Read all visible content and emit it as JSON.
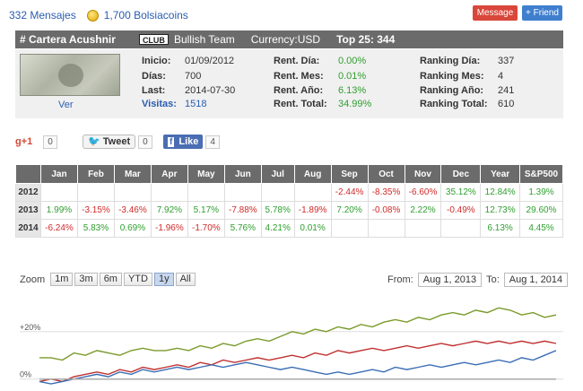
{
  "topbar": {
    "mensajes": "332 Mensajes",
    "bolsiacoins": "1,700 Bolsiacoins",
    "message_btn": "Message",
    "friend_btn": "+ Friend"
  },
  "header": {
    "title": "# Cartera Acushnir",
    "club": "CLUB",
    "team": "Bullish Team",
    "currency": "Currency:USD",
    "top25": "Top 25: 344"
  },
  "profile": {
    "ver": "Ver"
  },
  "info": {
    "col1": [
      {
        "label": "Inicio:",
        "value": "01/09/2012"
      },
      {
        "label": "Días:",
        "value": "700"
      },
      {
        "label": "Last:",
        "value": "2014-07-30"
      },
      {
        "label": "Visitas:",
        "value": "1518"
      }
    ],
    "col2": [
      {
        "label": "Rent. Día:",
        "value": "0.00%"
      },
      {
        "label": "Rent. Mes:",
        "value": "0.01%"
      },
      {
        "label": "Rent. Año:",
        "value": "6.13%"
      },
      {
        "label": "Rent. Total:",
        "value": "34.99%"
      }
    ],
    "col3": [
      {
        "label": "Ranking Día:",
        "value": "337"
      },
      {
        "label": "Ranking Mes:",
        "value": "4"
      },
      {
        "label": "Ranking Año:",
        "value": "241"
      },
      {
        "label": "Ranking Total:",
        "value": "610"
      }
    ]
  },
  "social": {
    "gplus": "g+1",
    "gplus_count": "0",
    "tweet": "Tweet",
    "tweet_count": "0",
    "like": "Like",
    "like_count": "4"
  },
  "table": {
    "headers": [
      "",
      "Jan",
      "Feb",
      "Mar",
      "Apr",
      "May",
      "Jun",
      "Jul",
      "Aug",
      "Sep",
      "Oct",
      "Nov",
      "Dec",
      "Year",
      "S&P500"
    ],
    "rows": [
      {
        "year": "2012",
        "cells": [
          "",
          "",
          "",
          "",
          "",
          "",
          "",
          "",
          "-2.44%",
          "-8.35%",
          "-6.60%",
          "35.12%",
          "12.84%",
          "1.39%"
        ]
      },
      {
        "year": "2013",
        "cells": [
          "1.99%",
          "-3.15%",
          "-3.46%",
          "7.92%",
          "5.17%",
          "-7.88%",
          "5.78%",
          "-1.89%",
          "7.20%",
          "-0.08%",
          "2.22%",
          "-0.49%",
          "12.73%",
          "29.60%"
        ]
      },
      {
        "year": "2014",
        "cells": [
          "-6.24%",
          "5.83%",
          "0.69%",
          "-1.96%",
          "-1.70%",
          "5.76%",
          "4.21%",
          "0.01%",
          "",
          "",
          "",
          "",
          "6.13%",
          "4.45%"
        ]
      }
    ]
  },
  "chart_controls": {
    "zoom_label": "Zoom",
    "zoom_buttons": [
      "1m",
      "3m",
      "6m",
      "YTD",
      "1y",
      "All"
    ],
    "active": "1y",
    "from_label": "From:",
    "from_value": "Aug 1, 2013",
    "to_label": "To:",
    "to_value": "Aug 1, 2014"
  },
  "chart_data": {
    "type": "line",
    "y_tick_labels": [
      "+20%",
      "0%"
    ],
    "ylim": [
      -2,
      32
    ],
    "series": [
      {
        "color": "#7a9a2a",
        "values": [
          9,
          9,
          8,
          11,
          10,
          12,
          11,
          10,
          12,
          13,
          12,
          12,
          13,
          12,
          14,
          13,
          15,
          14,
          16,
          17,
          16,
          18,
          20,
          19,
          21,
          20,
          22,
          21,
          23,
          22,
          24,
          25,
          24,
          26,
          25,
          27,
          28,
          27,
          29,
          28,
          30,
          29,
          27,
          28,
          26,
          27
        ]
      },
      {
        "color": "#c03030",
        "values": [
          -1,
          0,
          -1,
          1,
          2,
          3,
          2,
          4,
          3,
          5,
          4,
          5,
          6,
          5,
          7,
          6,
          8,
          7,
          8,
          9,
          8,
          9,
          10,
          9,
          11,
          10,
          12,
          11,
          12,
          13,
          12,
          13,
          14,
          13,
          14,
          15,
          14,
          15,
          16,
          15,
          16,
          15,
          16,
          15,
          16,
          15
        ]
      },
      {
        "color": "#3a6db5",
        "values": [
          -1,
          -2,
          -1,
          0,
          1,
          2,
          1,
          3,
          2,
          4,
          3,
          4,
          5,
          4,
          5,
          6,
          5,
          6,
          7,
          6,
          5,
          4,
          5,
          4,
          3,
          2,
          3,
          2,
          3,
          4,
          3,
          5,
          4,
          5,
          6,
          5,
          6,
          7,
          6,
          7,
          8,
          7,
          9,
          8,
          10,
          12
        ]
      },
      {
        "color": "#aaaaaa",
        "values": [
          0,
          0,
          0,
          0,
          0,
          0,
          0,
          0,
          0,
          0,
          0,
          0,
          0,
          0,
          0,
          0,
          0,
          0,
          0,
          0,
          0,
          0,
          0,
          0,
          0,
          0,
          0,
          0,
          0,
          0,
          0,
          0,
          0,
          0,
          0,
          0,
          0,
          0,
          0,
          0,
          0,
          0,
          0,
          0,
          0,
          0
        ]
      }
    ]
  }
}
